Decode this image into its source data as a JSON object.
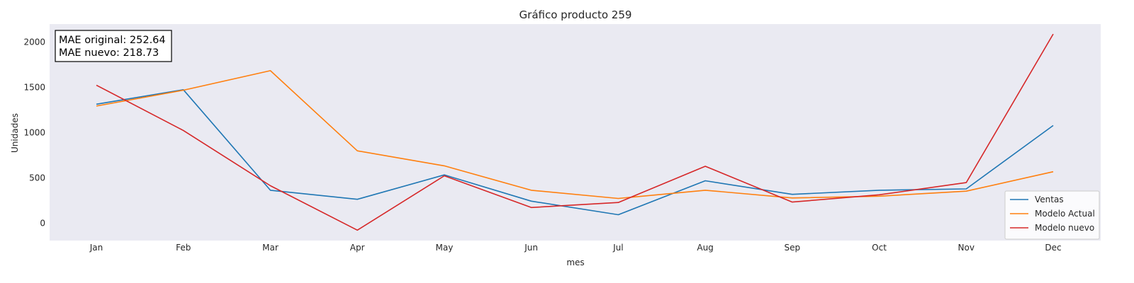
{
  "chart_data": {
    "type": "line",
    "title": "Gráfico producto 259",
    "xlabel": "mes",
    "ylabel": "Unidades",
    "categories": [
      "Jan",
      "Feb",
      "Mar",
      "Apr",
      "May",
      "Jun",
      "Jul",
      "Aug",
      "Sep",
      "Oct",
      "Nov",
      "Dec"
    ],
    "ylim": [
      -190,
      2200
    ],
    "yticks": [
      0,
      500,
      1000,
      1500,
      2000
    ],
    "grid": false,
    "background_color": "#eaeaf2",
    "legend_position": "lower-right",
    "series": [
      {
        "name": "Ventas",
        "color": "#1f77b4",
        "values": [
          1315,
          1475,
          365,
          265,
          535,
          245,
          95,
          470,
          320,
          365,
          380,
          1080
        ]
      },
      {
        "name": "Modelo Actual",
        "color": "#ff7f0e",
        "values": [
          1295,
          1470,
          1685,
          800,
          635,
          365,
          275,
          365,
          280,
          300,
          355,
          570
        ]
      },
      {
        "name": "Modelo nuevo",
        "color": "#d62728",
        "values": [
          1525,
          1025,
          415,
          -75,
          525,
          175,
          230,
          630,
          235,
          315,
          450,
          2090
        ]
      }
    ],
    "annotation": {
      "line1": "MAE original: 252.64",
      "line2": "MAE nuevo: 218.73"
    }
  }
}
